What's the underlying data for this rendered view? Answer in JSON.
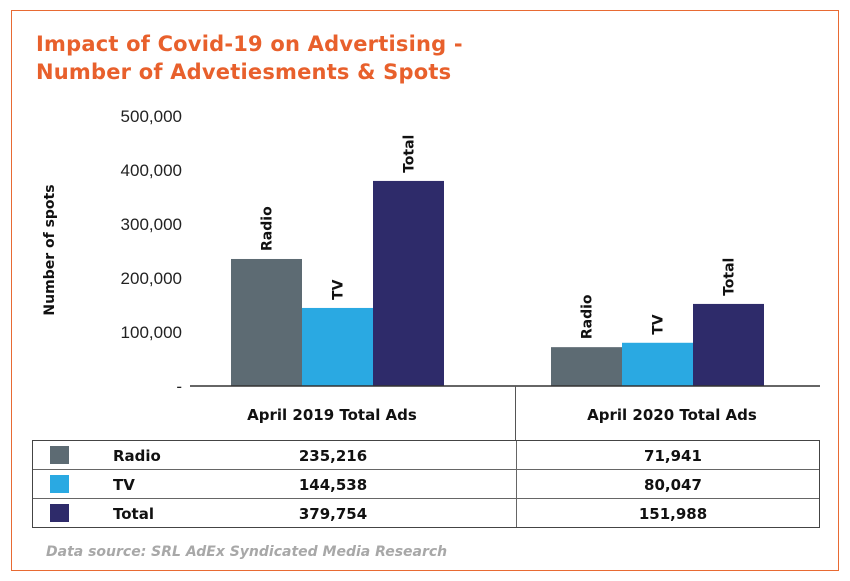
{
  "title_lines": [
    "Impact of Covid-19 on Advertising -",
    "Number of Advetiesments & Spots"
  ],
  "source": "Data source: SRL AdEx Syndicated Media Research",
  "colors": {
    "Radio": "#5d6b73",
    "TV": "#2aa9e2",
    "Total": "#2e2b6a",
    "accent": "#e8602c"
  },
  "chart_data": {
    "type": "bar",
    "title": "Impact of Covid-19 on Advertising - Number of Advetiesments & Spots",
    "ylabel": "Number of spots",
    "ylim": [
      0,
      500000
    ],
    "yticks": [
      0,
      100000,
      200000,
      300000,
      400000,
      500000
    ],
    "ytick_labels": [
      "-",
      "100,000",
      "200,000",
      "300,000",
      "400,000",
      "500,000"
    ],
    "categories": [
      "April 2019 Total Ads",
      "April 2020 Total Ads"
    ],
    "series": [
      {
        "name": "Radio",
        "values": [
          235216,
          71941
        ]
      },
      {
        "name": "TV",
        "values": [
          144538,
          80047
        ]
      },
      {
        "name": "Total",
        "values": [
          379754,
          151988
        ]
      }
    ]
  },
  "table": {
    "headers": [
      "April 2019 Total Ads",
      "April 2020 Total Ads"
    ],
    "rows": [
      {
        "label": "Radio",
        "values": [
          "235,216",
          "71,941"
        ]
      },
      {
        "label": "TV",
        "values": [
          "144,538",
          "80,047"
        ]
      },
      {
        "label": "Total",
        "values": [
          "379,754",
          "151,988"
        ]
      }
    ]
  }
}
